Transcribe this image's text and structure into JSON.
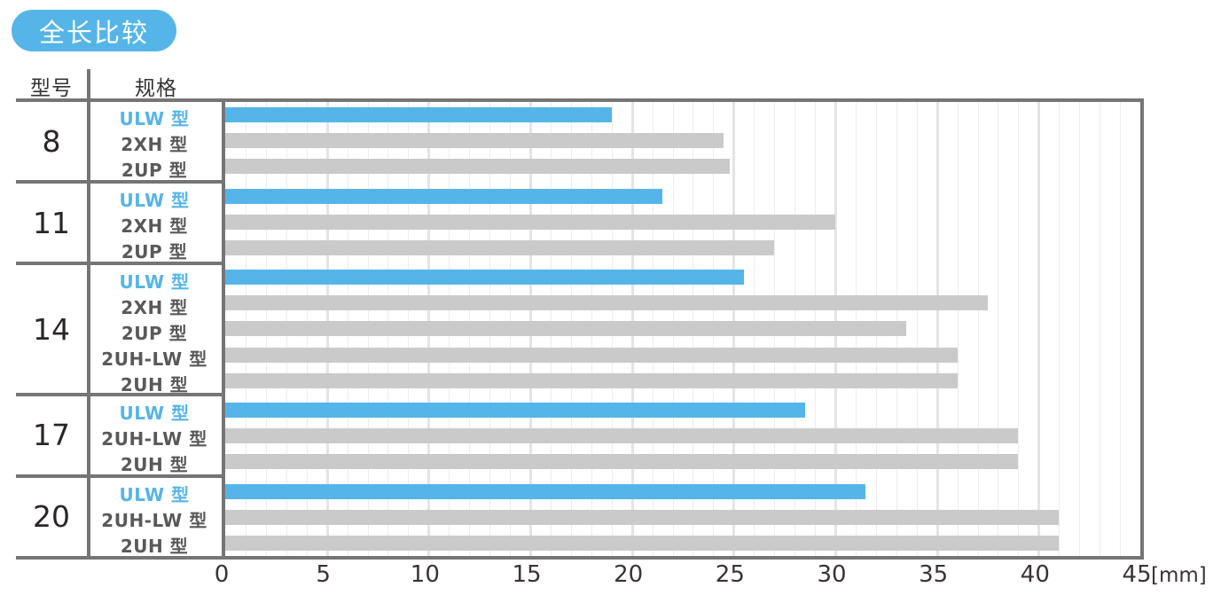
{
  "title": "全长比较",
  "table": {
    "col1_header": "型号",
    "col2_header": "规格"
  },
  "axis": {
    "ticks": [
      0,
      5,
      10,
      15,
      20,
      25,
      30,
      35,
      40,
      45
    ],
    "unit": "[mm]"
  },
  "colors": {
    "accent_blue": "#55b5e8",
    "bar_gray": "#cacaca",
    "border_gray": "#757575",
    "minor_grid": "#ededed",
    "major_grid": "#e4e4e4"
  },
  "chart_data": {
    "type": "bar",
    "orientation": "horizontal",
    "title": "全长比较",
    "xlabel": "[mm]",
    "xlim": [
      0,
      45
    ],
    "grid": "minor every 1 mm, major every 5 mm",
    "legend": "none",
    "groups": [
      {
        "model": "8",
        "rows": [
          {
            "label": "ULW 型",
            "value": 19.0,
            "highlight": true
          },
          {
            "label": "2XH 型",
            "value": 24.5,
            "highlight": false
          },
          {
            "label": "2UP 型",
            "value": 24.8,
            "highlight": false
          }
        ]
      },
      {
        "model": "11",
        "rows": [
          {
            "label": "ULW 型",
            "value": 21.5,
            "highlight": true
          },
          {
            "label": "2XH 型",
            "value": 30.0,
            "highlight": false
          },
          {
            "label": "2UP 型",
            "value": 27.0,
            "highlight": false
          }
        ]
      },
      {
        "model": "14",
        "rows": [
          {
            "label": "ULW 型",
            "value": 25.5,
            "highlight": true
          },
          {
            "label": "2XH 型",
            "value": 37.5,
            "highlight": false
          },
          {
            "label": "2UP 型",
            "value": 33.5,
            "highlight": false
          },
          {
            "label": "2UH-LW 型",
            "value": 36.0,
            "highlight": false
          },
          {
            "label": "2UH 型",
            "value": 36.0,
            "highlight": false
          }
        ]
      },
      {
        "model": "17",
        "rows": [
          {
            "label": "ULW 型",
            "value": 28.5,
            "highlight": true
          },
          {
            "label": "2UH-LW 型",
            "value": 39.0,
            "highlight": false
          },
          {
            "label": "2UH 型",
            "value": 39.0,
            "highlight": false
          }
        ]
      },
      {
        "model": "20",
        "rows": [
          {
            "label": "ULW 型",
            "value": 31.5,
            "highlight": true
          },
          {
            "label": "2UH-LW 型",
            "value": 41.0,
            "highlight": false
          },
          {
            "label": "2UH 型",
            "value": 41.0,
            "highlight": false
          }
        ]
      }
    ]
  }
}
